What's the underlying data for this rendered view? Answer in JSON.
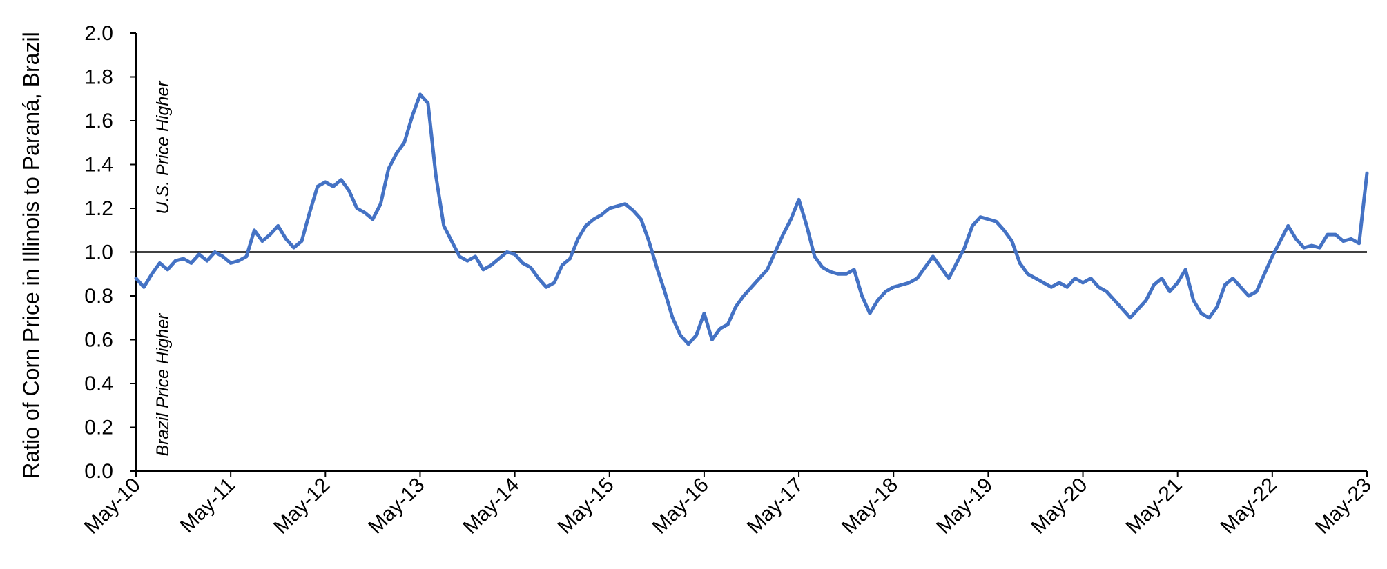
{
  "chart_data": {
    "type": "line",
    "title": "",
    "ylabel": "Ratio of Corn Price in Illinois to Paraná, Brazil",
    "xlabel": "",
    "ylim": [
      0.0,
      2.0
    ],
    "yticks": [
      "0.0",
      "0.2",
      "0.4",
      "0.6",
      "0.8",
      "1.0",
      "1.2",
      "1.4",
      "1.6",
      "1.8",
      "2.0"
    ],
    "xticks": [
      "May-10",
      "May-11",
      "May-12",
      "May-13",
      "May-14",
      "May-15",
      "May-16",
      "May-17",
      "May-18",
      "May-19",
      "May-20",
      "May-21",
      "May-22",
      "May-23"
    ],
    "grid": false,
    "reference_line": {
      "y": 1.0,
      "color": "#000000"
    },
    "annotations": [
      {
        "text": "U.S. Price Higher"
      },
      {
        "text": "Brazil Price Higher"
      }
    ],
    "series": [
      {
        "color": "#4472C4",
        "points": [
          [
            "2010-05",
            0.88
          ],
          [
            "2010-06",
            0.84
          ],
          [
            "2010-07",
            0.9
          ],
          [
            "2010-08",
            0.95
          ],
          [
            "2010-09",
            0.92
          ],
          [
            "2010-10",
            0.96
          ],
          [
            "2010-11",
            0.97
          ],
          [
            "2010-12",
            0.95
          ],
          [
            "2011-01",
            0.99
          ],
          [
            "2011-02",
            0.96
          ],
          [
            "2011-03",
            1.0
          ],
          [
            "2011-04",
            0.98
          ],
          [
            "2011-05",
            0.95
          ],
          [
            "2011-06",
            0.96
          ],
          [
            "2011-07",
            0.98
          ],
          [
            "2011-08",
            1.1
          ],
          [
            "2011-09",
            1.05
          ],
          [
            "2011-10",
            1.08
          ],
          [
            "2011-11",
            1.12
          ],
          [
            "2011-12",
            1.06
          ],
          [
            "2012-01",
            1.02
          ],
          [
            "2012-02",
            1.05
          ],
          [
            "2012-03",
            1.18
          ],
          [
            "2012-04",
            1.3
          ],
          [
            "2012-05",
            1.32
          ],
          [
            "2012-06",
            1.3
          ],
          [
            "2012-07",
            1.33
          ],
          [
            "2012-08",
            1.28
          ],
          [
            "2012-09",
            1.2
          ],
          [
            "2012-10",
            1.18
          ],
          [
            "2012-11",
            1.15
          ],
          [
            "2012-12",
            1.22
          ],
          [
            "2013-01",
            1.38
          ],
          [
            "2013-02",
            1.45
          ],
          [
            "2013-03",
            1.5
          ],
          [
            "2013-04",
            1.62
          ],
          [
            "2013-05",
            1.72
          ],
          [
            "2013-06",
            1.68
          ],
          [
            "2013-07",
            1.35
          ],
          [
            "2013-08",
            1.12
          ],
          [
            "2013-09",
            1.05
          ],
          [
            "2013-10",
            0.98
          ],
          [
            "2013-11",
            0.96
          ],
          [
            "2013-12",
            0.98
          ],
          [
            "2014-01",
            0.92
          ],
          [
            "2014-02",
            0.94
          ],
          [
            "2014-03",
            0.97
          ],
          [
            "2014-04",
            1.0
          ],
          [
            "2014-05",
            0.99
          ],
          [
            "2014-06",
            0.95
          ],
          [
            "2014-07",
            0.93
          ],
          [
            "2014-08",
            0.88
          ],
          [
            "2014-09",
            0.84
          ],
          [
            "2014-10",
            0.86
          ],
          [
            "2014-11",
            0.94
          ],
          [
            "2014-12",
            0.97
          ],
          [
            "2015-01",
            1.06
          ],
          [
            "2015-02",
            1.12
          ],
          [
            "2015-03",
            1.15
          ],
          [
            "2015-04",
            1.17
          ],
          [
            "2015-05",
            1.2
          ],
          [
            "2015-06",
            1.21
          ],
          [
            "2015-07",
            1.22
          ],
          [
            "2015-08",
            1.19
          ],
          [
            "2015-09",
            1.15
          ],
          [
            "2015-10",
            1.05
          ],
          [
            "2015-11",
            0.93
          ],
          [
            "2015-12",
            0.82
          ],
          [
            "2016-01",
            0.7
          ],
          [
            "2016-02",
            0.62
          ],
          [
            "2016-03",
            0.58
          ],
          [
            "2016-04",
            0.62
          ],
          [
            "2016-05",
            0.72
          ],
          [
            "2016-06",
            0.6
          ],
          [
            "2016-07",
            0.65
          ],
          [
            "2016-08",
            0.67
          ],
          [
            "2016-09",
            0.75
          ],
          [
            "2016-10",
            0.8
          ],
          [
            "2016-11",
            0.84
          ],
          [
            "2016-12",
            0.88
          ],
          [
            "2017-01",
            0.92
          ],
          [
            "2017-02",
            1.0
          ],
          [
            "2017-03",
            1.08
          ],
          [
            "2017-04",
            1.15
          ],
          [
            "2017-05",
            1.24
          ],
          [
            "2017-06",
            1.12
          ],
          [
            "2017-07",
            0.98
          ],
          [
            "2017-08",
            0.93
          ],
          [
            "2017-09",
            0.91
          ],
          [
            "2017-10",
            0.9
          ],
          [
            "2017-11",
            0.9
          ],
          [
            "2017-12",
            0.92
          ],
          [
            "2018-01",
            0.8
          ],
          [
            "2018-02",
            0.72
          ],
          [
            "2018-03",
            0.78
          ],
          [
            "2018-04",
            0.82
          ],
          [
            "2018-05",
            0.84
          ],
          [
            "2018-06",
            0.85
          ],
          [
            "2018-07",
            0.86
          ],
          [
            "2018-08",
            0.88
          ],
          [
            "2018-09",
            0.93
          ],
          [
            "2018-10",
            0.98
          ],
          [
            "2018-11",
            0.93
          ],
          [
            "2018-12",
            0.88
          ],
          [
            "2019-01",
            0.95
          ],
          [
            "2019-02",
            1.02
          ],
          [
            "2019-03",
            1.12
          ],
          [
            "2019-04",
            1.16
          ],
          [
            "2019-05",
            1.15
          ],
          [
            "2019-06",
            1.14
          ],
          [
            "2019-07",
            1.1
          ],
          [
            "2019-08",
            1.05
          ],
          [
            "2019-09",
            0.95
          ],
          [
            "2019-10",
            0.9
          ],
          [
            "2019-11",
            0.88
          ],
          [
            "2019-12",
            0.86
          ],
          [
            "2020-01",
            0.84
          ],
          [
            "2020-02",
            0.86
          ],
          [
            "2020-03",
            0.84
          ],
          [
            "2020-04",
            0.88
          ],
          [
            "2020-05",
            0.86
          ],
          [
            "2020-06",
            0.88
          ],
          [
            "2020-07",
            0.84
          ],
          [
            "2020-08",
            0.82
          ],
          [
            "2020-09",
            0.78
          ],
          [
            "2020-10",
            0.74
          ],
          [
            "2020-11",
            0.7
          ],
          [
            "2020-12",
            0.74
          ],
          [
            "2021-01",
            0.78
          ],
          [
            "2021-02",
            0.85
          ],
          [
            "2021-03",
            0.88
          ],
          [
            "2021-04",
            0.82
          ],
          [
            "2021-05",
            0.86
          ],
          [
            "2021-06",
            0.92
          ],
          [
            "2021-07",
            0.78
          ],
          [
            "2021-08",
            0.72
          ],
          [
            "2021-09",
            0.7
          ],
          [
            "2021-10",
            0.75
          ],
          [
            "2021-11",
            0.85
          ],
          [
            "2021-12",
            0.88
          ],
          [
            "2022-01",
            0.84
          ],
          [
            "2022-02",
            0.8
          ],
          [
            "2022-03",
            0.82
          ],
          [
            "2022-04",
            0.9
          ],
          [
            "2022-05",
            0.98
          ],
          [
            "2022-06",
            1.05
          ],
          [
            "2022-07",
            1.12
          ],
          [
            "2022-08",
            1.06
          ],
          [
            "2022-09",
            1.02
          ],
          [
            "2022-10",
            1.03
          ],
          [
            "2022-11",
            1.02
          ],
          [
            "2022-12",
            1.08
          ],
          [
            "2023-01",
            1.08
          ],
          [
            "2023-02",
            1.05
          ],
          [
            "2023-03",
            1.06
          ],
          [
            "2023-04",
            1.04
          ],
          [
            "2023-05",
            1.36
          ]
        ]
      }
    ]
  }
}
